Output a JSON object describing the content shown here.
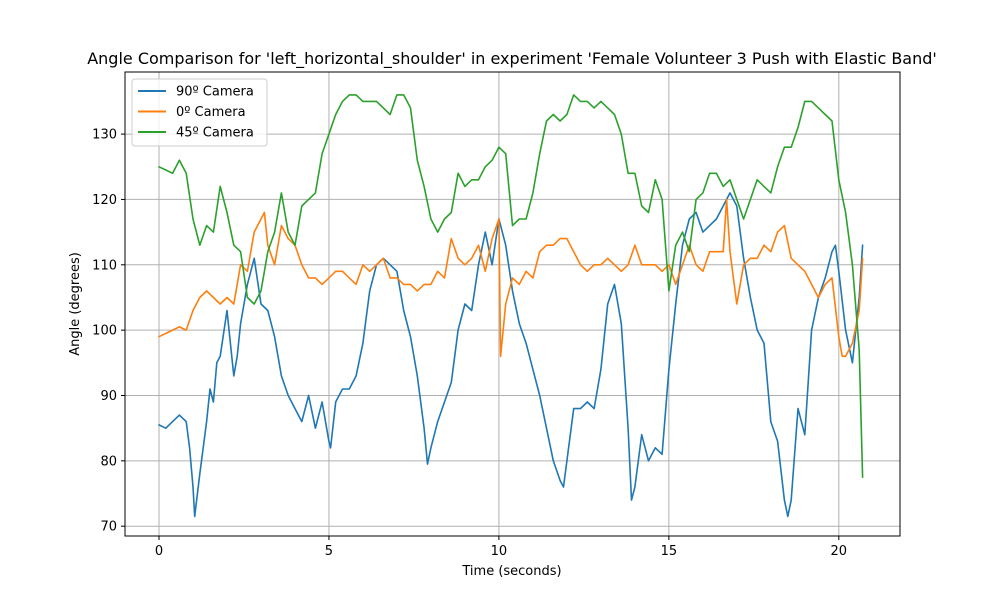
{
  "chart_data": {
    "type": "line",
    "title": "Angle Comparison for 'left_horizontal_shoulder' in experiment 'Female Volunteer 3 Push with Elastic Band'",
    "xlabel": "Time (seconds)",
    "ylabel": "Angle (degrees)",
    "xlim": [
      -1.0,
      21.8
    ],
    "ylim": [
      68.5,
      139.5
    ],
    "xticks": [
      0,
      5,
      10,
      15,
      20
    ],
    "yticks": [
      70,
      80,
      90,
      100,
      110,
      120,
      130
    ],
    "grid": true,
    "legend_position": "top-left",
    "series": [
      {
        "name": "90º Camera",
        "color": "#1f77b4",
        "x": [
          0,
          0.2,
          0.4,
          0.6,
          0.8,
          0.9,
          1.0,
          1.05,
          1.2,
          1.4,
          1.5,
          1.6,
          1.7,
          1.8,
          2.0,
          2.2,
          2.3,
          2.4,
          2.6,
          2.8,
          3.0,
          3.2,
          3.4,
          3.6,
          3.8,
          4.0,
          4.2,
          4.4,
          4.6,
          4.8,
          5.0,
          5.05,
          5.2,
          5.4,
          5.6,
          5.8,
          6.0,
          6.2,
          6.4,
          6.6,
          6.8,
          7.0,
          7.2,
          7.4,
          7.6,
          7.8,
          7.9,
          8.0,
          8.2,
          8.4,
          8.6,
          8.8,
          9.0,
          9.2,
          9.4,
          9.6,
          9.8,
          10.0,
          10.2,
          10.4,
          10.6,
          10.8,
          11.0,
          11.2,
          11.4,
          11.6,
          11.8,
          11.9,
          12.0,
          12.2,
          12.4,
          12.6,
          12.8,
          13.0,
          13.2,
          13.4,
          13.6,
          13.8,
          13.9,
          14.0,
          14.2,
          14.4,
          14.6,
          14.8,
          15.0,
          15.2,
          15.4,
          15.6,
          15.8,
          16.0,
          16.2,
          16.4,
          16.6,
          16.8,
          17.0,
          17.2,
          17.4,
          17.6,
          17.8,
          18.0,
          18.2,
          18.4,
          18.5,
          18.6,
          18.8,
          19.0,
          19.2,
          19.4,
          19.6,
          19.8,
          19.9,
          20.0,
          20.2,
          20.4,
          20.6,
          20.7
        ],
        "y": [
          85.5,
          85.0,
          86.0,
          87.0,
          86.0,
          82.0,
          76.0,
          71.5,
          78.0,
          86.0,
          91.0,
          89.0,
          95.0,
          96.0,
          103.0,
          93.0,
          96.0,
          101.0,
          107.0,
          111.0,
          104.0,
          103.0,
          99.0,
          93.0,
          90.0,
          88.0,
          86.0,
          90.0,
          85.0,
          89.0,
          83.0,
          82.0,
          89.0,
          91.0,
          91.0,
          93.0,
          98.0,
          106.0,
          110.0,
          111.0,
          110.0,
          109.0,
          103.0,
          99.0,
          93.0,
          85.0,
          79.5,
          82.0,
          86.0,
          89.0,
          92.0,
          100.0,
          104.0,
          103.0,
          110.0,
          115.0,
          110.0,
          117.0,
          113.0,
          106.0,
          101.0,
          98.0,
          94.0,
          90.0,
          85.0,
          80.0,
          77.0,
          76.0,
          80.0,
          88.0,
          88.0,
          89.0,
          88.0,
          94.0,
          104.0,
          107.0,
          101.0,
          85.0,
          74.0,
          76.0,
          84.0,
          80.0,
          82.0,
          81.0,
          94.0,
          104.0,
          113.0,
          117.0,
          118.0,
          115.0,
          116.0,
          117.0,
          119.0,
          121.0,
          119.0,
          111.0,
          105.0,
          100.0,
          98.0,
          86.0,
          83.0,
          74.0,
          71.5,
          74.0,
          88.0,
          84.0,
          100.0,
          105.0,
          108.0,
          112.0,
          113.0,
          109.0,
          100.0,
          95.0,
          105.0,
          113.0
        ]
      },
      {
        "name": "0º Camera",
        "color": "#ff7f0e",
        "x": [
          0,
          0.2,
          0.4,
          0.6,
          0.8,
          1.0,
          1.2,
          1.4,
          1.6,
          1.8,
          2.0,
          2.2,
          2.4,
          2.6,
          2.8,
          3.0,
          3.1,
          3.2,
          3.4,
          3.6,
          3.8,
          4.0,
          4.2,
          4.4,
          4.6,
          4.8,
          5.0,
          5.2,
          5.4,
          5.6,
          5.8,
          6.0,
          6.2,
          6.4,
          6.6,
          6.8,
          7.0,
          7.2,
          7.4,
          7.6,
          7.8,
          8.0,
          8.2,
          8.4,
          8.6,
          8.8,
          9.0,
          9.2,
          9.4,
          9.6,
          9.8,
          10.0,
          10.05,
          10.2,
          10.4,
          10.6,
          10.8,
          11.0,
          11.2,
          11.4,
          11.6,
          11.8,
          12.0,
          12.2,
          12.4,
          12.6,
          12.8,
          13.0,
          13.2,
          13.4,
          13.6,
          13.8,
          14.0,
          14.2,
          14.4,
          14.6,
          14.8,
          15.0,
          15.2,
          15.4,
          15.6,
          15.8,
          16.0,
          16.2,
          16.4,
          16.6,
          16.7,
          16.8,
          17.0,
          17.2,
          17.4,
          17.6,
          17.8,
          18.0,
          18.2,
          18.4,
          18.6,
          18.8,
          19.0,
          19.2,
          19.4,
          19.6,
          19.8,
          20.0,
          20.1,
          20.2,
          20.4,
          20.6,
          20.7
        ],
        "y": [
          99.0,
          99.5,
          100.0,
          100.5,
          100.0,
          103.0,
          105.0,
          106.0,
          105.0,
          104.0,
          105.0,
          104.0,
          110.0,
          109.0,
          115.0,
          117.0,
          118.0,
          113.0,
          110.0,
          116.0,
          114.0,
          113.0,
          110.0,
          108.0,
          108.0,
          107.0,
          108.0,
          109.0,
          109.0,
          108.0,
          107.0,
          110.0,
          109.0,
          110.0,
          111.0,
          108.0,
          108.0,
          107.0,
          107.0,
          106.0,
          107.0,
          107.0,
          109.0,
          108.0,
          114.0,
          111.0,
          110.0,
          111.0,
          113.0,
          109.0,
          114.0,
          117.0,
          96.0,
          104.0,
          108.0,
          107.0,
          109.0,
          108.0,
          112.0,
          113.0,
          113.0,
          114.0,
          114.0,
          112.0,
          110.0,
          109.0,
          110.0,
          110.0,
          111.0,
          110.0,
          109.0,
          110.0,
          113.0,
          110.0,
          110.0,
          110.0,
          109.0,
          110.0,
          107.0,
          110.0,
          113.0,
          110.0,
          109.0,
          112.0,
          112.0,
          112.0,
          120.0,
          112.0,
          104.0,
          110.0,
          111.0,
          111.0,
          113.0,
          112.0,
          115.0,
          116.0,
          111.0,
          110.0,
          109.0,
          107.0,
          105.0,
          107.0,
          108.0,
          99.0,
          96.0,
          96.0,
          98.0,
          103.0,
          111.0
        ]
      },
      {
        "name": "45º Camera",
        "color": "#2ca02c",
        "x": [
          0,
          0.2,
          0.4,
          0.6,
          0.8,
          1.0,
          1.2,
          1.4,
          1.6,
          1.8,
          2.0,
          2.2,
          2.4,
          2.6,
          2.8,
          3.0,
          3.2,
          3.4,
          3.6,
          3.8,
          4.0,
          4.2,
          4.4,
          4.6,
          4.8,
          5.0,
          5.2,
          5.4,
          5.6,
          5.8,
          6.0,
          6.2,
          6.4,
          6.6,
          6.8,
          7.0,
          7.2,
          7.4,
          7.6,
          7.8,
          8.0,
          8.2,
          8.4,
          8.6,
          8.8,
          9.0,
          9.2,
          9.4,
          9.6,
          9.8,
          10.0,
          10.2,
          10.4,
          10.6,
          10.8,
          11.0,
          11.2,
          11.4,
          11.6,
          11.8,
          12.0,
          12.2,
          12.4,
          12.6,
          12.8,
          13.0,
          13.2,
          13.4,
          13.6,
          13.8,
          14.0,
          14.2,
          14.4,
          14.6,
          14.8,
          15.0,
          15.2,
          15.4,
          15.6,
          15.8,
          16.0,
          16.2,
          16.4,
          16.6,
          16.8,
          17.0,
          17.2,
          17.4,
          17.6,
          17.8,
          18.0,
          18.2,
          18.4,
          18.6,
          18.8,
          19.0,
          19.2,
          19.4,
          19.6,
          19.8,
          20.0,
          20.2,
          20.4,
          20.6,
          20.7
        ],
        "y": [
          125.0,
          124.5,
          124.0,
          126.0,
          124.0,
          117.0,
          113.0,
          116.0,
          115.0,
          122.0,
          118.0,
          113.0,
          112.0,
          105.0,
          104.0,
          106.0,
          112.0,
          115.0,
          121.0,
          115.0,
          113.0,
          119.0,
          120.0,
          121.0,
          127.0,
          130.0,
          133.0,
          135.0,
          136.0,
          136.0,
          135.0,
          135.0,
          135.0,
          134.0,
          133.0,
          136.0,
          136.0,
          134.0,
          126.0,
          122.0,
          117.0,
          115.0,
          117.0,
          118.0,
          124.0,
          122.0,
          123.0,
          123.0,
          125.0,
          126.0,
          128.0,
          127.0,
          116.0,
          117.0,
          117.0,
          121.0,
          127.0,
          132.0,
          133.0,
          132.0,
          133.0,
          136.0,
          135.0,
          135.0,
          134.0,
          135.0,
          134.0,
          133.0,
          130.0,
          124.0,
          124.0,
          119.0,
          118.0,
          123.0,
          120.0,
          106.0,
          113.0,
          115.0,
          112.0,
          120.0,
          121.0,
          124.0,
          124.0,
          122.0,
          123.0,
          120.0,
          117.0,
          120.0,
          123.0,
          122.0,
          121.0,
          125.0,
          128.0,
          128.0,
          131.0,
          135.0,
          135.0,
          134.0,
          133.0,
          132.0,
          123.0,
          118.0,
          110.0,
          97.0,
          77.5
        ]
      }
    ]
  }
}
